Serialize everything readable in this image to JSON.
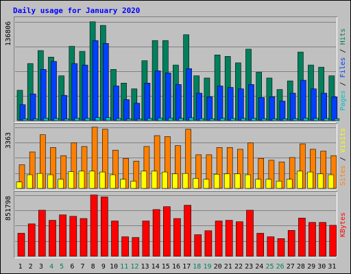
{
  "chart_data": {
    "type": "bar",
    "title": "Daily usage for January 2020",
    "categories": [
      "1",
      "2",
      "3",
      "4",
      "5",
      "6",
      "7",
      "8",
      "9",
      "10",
      "11",
      "12",
      "13",
      "14",
      "15",
      "16",
      "17",
      "18",
      "19",
      "20",
      "21",
      "22",
      "23",
      "24",
      "25",
      "26",
      "27",
      "28",
      "29",
      "30",
      "31"
    ],
    "weekend_days": [
      "4",
      "5",
      "11",
      "12",
      "18",
      "19",
      "25",
      "26"
    ],
    "panels": [
      {
        "id": "hits-files-pages",
        "ymax": 136806,
        "ymax_label": "136806",
        "right_label_parts": [
          {
            "text": "Pages",
            "color": "#00c0c0"
          },
          {
            "text": " / ",
            "color": "#000000"
          },
          {
            "text": "Files",
            "color": "#0040ff"
          },
          {
            "text": " / ",
            "color": "#000000"
          },
          {
            "text": "Hits",
            "color": "#008060"
          }
        ],
        "series": [
          {
            "name": "Hits",
            "color": "#00805c",
            "values": [
              42000,
              79000,
              97000,
              88000,
              62000,
              103000,
              96000,
              137000,
              132000,
              71000,
              52000,
              44000,
              83000,
              111000,
              111000,
              77000,
              119000,
              62000,
              59000,
              91000,
              89000,
              80000,
              99000,
              67000,
              59000,
              43000,
              55000,
              95000,
              77000,
              74000,
              62000
            ]
          },
          {
            "name": "Files",
            "color": "#0040ff",
            "values": [
              22000,
              37000,
              71000,
              82000,
              35000,
              79000,
              77000,
              111000,
              107000,
              48000,
              29000,
              24000,
              52000,
              69000,
              66000,
              50000,
              72000,
              38000,
              33000,
              48000,
              46000,
              44000,
              50000,
              32000,
              33000,
              27000,
              38000,
              56000,
              44000,
              38000,
              33000
            ]
          },
          {
            "name": "Pages",
            "color": "#00c0c0",
            "values": [
              2500,
              2400,
              3500,
              3000,
              2300,
              3300,
              3100,
              4200,
              4200,
              3000,
              2400,
              2100,
              3000,
              3600,
              3600,
              3100,
              3900,
              2700,
              2600,
              3100,
              2900,
              3000,
              3200,
              2700,
              2600,
              2500,
              2800,
              3400,
              3100,
              3000,
              2700
            ]
          }
        ]
      },
      {
        "id": "visits-sites",
        "ymax": 3363,
        "ymax_label": "3363",
        "right_label_parts": [
          {
            "text": "Sites",
            "color": "#ff8000"
          },
          {
            "text": " / ",
            "color": "#000000"
          },
          {
            "text": "Visits",
            "color": "#ffff00"
          }
        ],
        "series": [
          {
            "name": "Visits",
            "color": "#ff8000",
            "values": [
              1300,
              2000,
              2950,
              2250,
              1800,
              2500,
              2300,
              3363,
              3250,
              2100,
              1650,
              1500,
              2300,
              2900,
              2850,
              2350,
              3250,
              1850,
              1850,
              2250,
              2250,
              2150,
              2500,
              1650,
              1550,
              1450,
              1700,
              2450,
              2150,
              2050,
              1800
            ]
          },
          {
            "name": "Sites",
            "color": "#ffff00",
            "values": [
              350,
              750,
              820,
              750,
              500,
              920,
              950,
              950,
              900,
              750,
              500,
              400,
              950,
              950,
              900,
              800,
              820,
              550,
              500,
              780,
              800,
              800,
              750,
              500,
              500,
              400,
              500,
              950,
              900,
              800,
              750
            ]
          }
        ]
      },
      {
        "id": "kbytes",
        "ymax": 851798,
        "ymax_label": "851798",
        "right_label_parts": [
          {
            "text": "KBytes",
            "color": "#ff0000"
          }
        ],
        "series": [
          {
            "name": "KBytes",
            "color": "#ff0000",
            "values": [
              320000,
              450000,
              640000,
              500000,
              575000,
              555000,
              525000,
              851798,
              825000,
              490000,
              270000,
              260000,
              490000,
              650000,
              690000,
              525000,
              710000,
              300000,
              355000,
              490000,
              500000,
              480000,
              640000,
              320000,
              270000,
              245000,
              360000,
              530000,
              470000,
              470000,
              430000
            ]
          }
        ]
      }
    ]
  }
}
